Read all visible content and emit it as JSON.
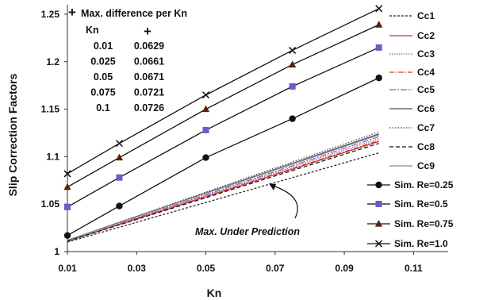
{
  "chart_data": {
    "type": "line",
    "xlabel": "Kn",
    "ylabel": "Slip Correction Factors",
    "xlim": [
      0.01,
      0.12
    ],
    "ylim": [
      1.0,
      1.26
    ],
    "x_ticks": [
      "0.01",
      "0.03",
      "0.05",
      "0.07",
      "0.09",
      "0.11"
    ],
    "y_ticks": [
      "1",
      "1.05",
      "1.1",
      "1.15",
      "1.2",
      "1.25"
    ],
    "grid": false,
    "legend_position": "right",
    "correlations": [
      {
        "name": "Cc1",
        "color": "#222222",
        "dash": "3,2",
        "x": [
          0.01,
          0.1
        ],
        "y": [
          1.01,
          1.104
        ]
      },
      {
        "name": "Cc2",
        "color": "#c0392b",
        "dash": "",
        "x": [
          0.01,
          0.1
        ],
        "y": [
          1.011,
          1.116
        ]
      },
      {
        "name": "Cc3",
        "color": "#5b6fc4",
        "dash": "1.5,1.5",
        "x": [
          0.01,
          0.1
        ],
        "y": [
          1.011,
          1.119
        ]
      },
      {
        "name": "Cc4",
        "color": "#e8331f",
        "dash": "6,2,1.5,2",
        "x": [
          0.01,
          0.1
        ],
        "y": [
          1.011,
          1.117
        ]
      },
      {
        "name": "Cc5",
        "color": "#9b59b6",
        "dash": "8,2,2,2",
        "x": [
          0.01,
          0.1
        ],
        "y": [
          1.011,
          1.121
        ]
      },
      {
        "name": "Cc6",
        "color": "#555555",
        "dash": "",
        "x": [
          0.01,
          0.1
        ],
        "y": [
          1.012,
          1.124
        ]
      },
      {
        "name": "Cc7",
        "color": "#444444",
        "dash": "1.5,2",
        "x": [
          0.01,
          0.1
        ],
        "y": [
          1.012,
          1.126
        ]
      },
      {
        "name": "Cc8",
        "color": "#111111",
        "dash": "5,3",
        "x": [
          0.01,
          0.1
        ],
        "y": [
          1.011,
          1.114
        ]
      },
      {
        "name": "Cc9",
        "color": "#888888",
        "dash": "",
        "x": [
          0.01,
          0.1
        ],
        "y": [
          1.012,
          1.123
        ]
      }
    ],
    "simulations": [
      {
        "name": "Sim. Re=0.25",
        "color": "#111111",
        "marker": "circle",
        "x": [
          0.01,
          0.025,
          0.05,
          0.075,
          0.1
        ],
        "y": [
          1.017,
          1.048,
          1.099,
          1.14,
          1.183
        ]
      },
      {
        "name": "Sim. Re=0.5",
        "color": "#6a5acd",
        "marker": "square",
        "x": [
          0.01,
          0.025,
          0.05,
          0.075,
          0.1
        ],
        "y": [
          1.047,
          1.078,
          1.128,
          1.174,
          1.215
        ]
      },
      {
        "name": "Sim. Re=0.75",
        "color": "#5a1f0a",
        "marker": "triangle",
        "x": [
          0.01,
          0.025,
          0.05,
          0.075,
          0.1
        ],
        "y": [
          1.068,
          1.099,
          1.15,
          1.197,
          1.239
        ]
      },
      {
        "name": "Sim. Re=1.0",
        "color": "#111111",
        "marker": "x",
        "x": [
          0.01,
          0.025,
          0.05,
          0.075,
          0.1
        ],
        "y": [
          1.082,
          1.114,
          1.165,
          1.212,
          1.256
        ]
      }
    ],
    "annotations": {
      "table_title": "Max. difference per Kn",
      "table_headers": [
        "Kn"
      ],
      "table_rows": [
        {
          "kn": "0.01",
          "diff": "0.0629"
        },
        {
          "kn": "0.025",
          "diff": "0.0661"
        },
        {
          "kn": "0.05",
          "diff": "0.0671"
        },
        {
          "kn": "0.075",
          "diff": "0.0721"
        },
        {
          "kn": "0.1",
          "diff": "0.0726"
        }
      ],
      "under_prediction_label": "Max. Under Prediction"
    }
  }
}
